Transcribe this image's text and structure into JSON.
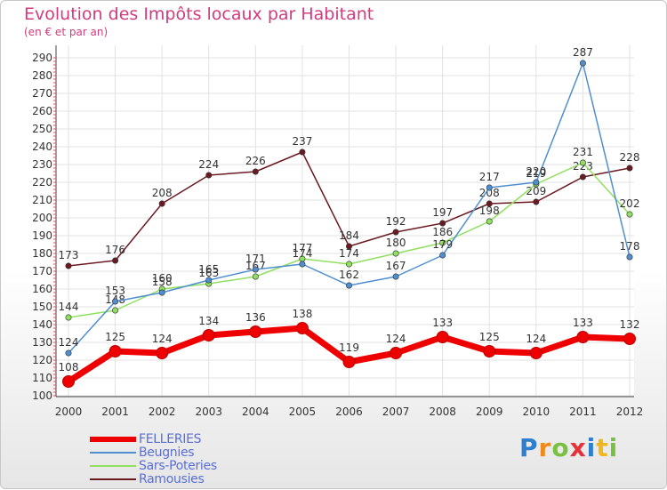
{
  "chart_data": {
    "type": "line",
    "title": "Evolution des Impôts locaux par Habitant",
    "subtitle": "(en € et par an)",
    "x": [
      "2000",
      "2001",
      "2002",
      "2003",
      "2004",
      "2005",
      "2006",
      "2007",
      "2008",
      "2009",
      "2010",
      "2011",
      "2012"
    ],
    "ylim": [
      100,
      290
    ],
    "yticks": [
      100,
      110,
      120,
      130,
      140,
      150,
      160,
      170,
      180,
      190,
      200,
      210,
      220,
      230,
      240,
      250,
      260,
      270,
      280,
      290
    ],
    "grid": true,
    "legend_position": "bottom-left",
    "series": [
      {
        "name": "Ramousies",
        "color": "#6b1a22",
        "values": [
          173,
          176,
          208,
          224,
          226,
          237,
          184,
          192,
          197,
          208,
          209,
          223,
          228
        ]
      },
      {
        "name": "Sars-Poteries",
        "color": "#90e060",
        "values": [
          144,
          148,
          160,
          163,
          167,
          177,
          174,
          180,
          186,
          198,
          219,
          231,
          202
        ]
      },
      {
        "name": "Beugnies",
        "color": "#4f8fd0",
        "values": [
          124,
          153,
          158,
          165,
          171,
          174,
          162,
          167,
          179,
          217,
          220,
          287,
          178
        ]
      },
      {
        "name": "FELLERIES",
        "color": "#ee0000",
        "values": [
          108,
          125,
          124,
          134,
          136,
          138,
          119,
          124,
          133,
          125,
          124,
          133,
          132
        ]
      }
    ]
  },
  "legend": {
    "items": [
      "FELLERIES",
      "Beugnies",
      "Sars-Poteries",
      "Ramousies"
    ]
  },
  "logo": {
    "text": "Proxiti",
    "letters": [
      "P",
      "r",
      "o",
      "x",
      "i",
      "t",
      "i"
    ]
  }
}
